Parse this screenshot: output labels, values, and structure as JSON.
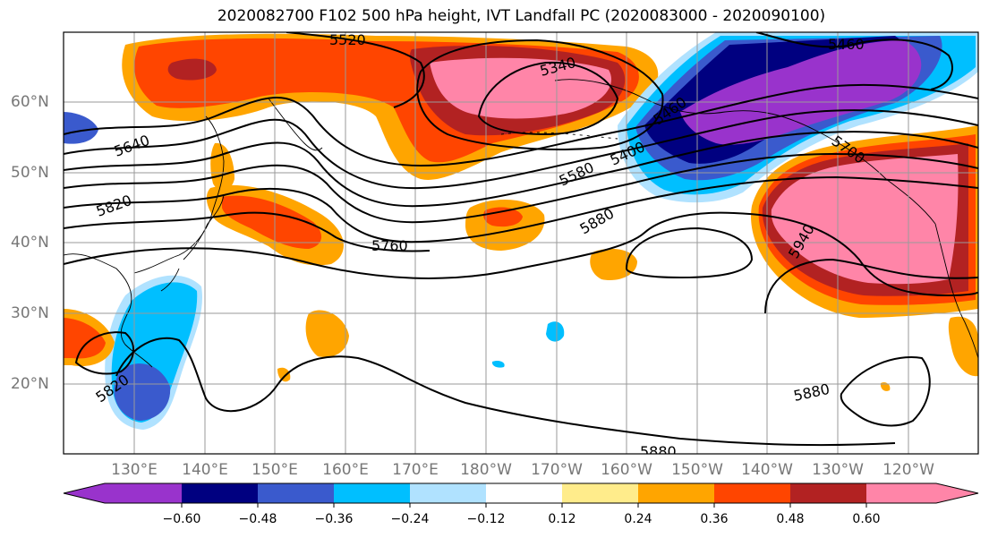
{
  "title": "2020082700 F102 500 hPa height, IVT Landfall PC (2020083000 - 2020090100)",
  "latitude_labels": [
    "60°N",
    "50°N",
    "40°N",
    "30°N",
    "20°N"
  ],
  "longitude_labels": [
    "130°E",
    "140°E",
    "150°E",
    "160°E",
    "170°E",
    "180°W",
    "170°W",
    "160°W",
    "150°W",
    "140°W",
    "130°W",
    "120°W"
  ],
  "contour_labels": [
    "5520",
    "5340",
    "5460",
    "5640",
    "5580",
    "5400",
    "5460",
    "5820",
    "5760",
    "5880",
    "5940",
    "5700",
    "5820",
    "5880",
    "5880"
  ],
  "colorbar": {
    "tick_labels": [
      "−0.60",
      "−0.48",
      "−0.36",
      "−0.24",
      "−0.12",
      "0.12",
      "0.24",
      "0.36",
      "0.48",
      "0.60"
    ],
    "colors": [
      "#9933cc",
      "#000080",
      "#3a5acd",
      "#00bfff",
      "#b0e2ff",
      "#ffffff",
      "#ffec8b",
      "#ffa500",
      "#ff4500",
      "#b22222",
      "#ff85a8",
      "#ff85a8"
    ]
  },
  "palette": {
    "purple": "#9933cc",
    "navy": "#000080",
    "royal": "#3a5acd",
    "sky": "#00bfff",
    "light_sky": "#b0e2ff",
    "yellow": "#ffec8b",
    "orange": "#ffa500",
    "red_orange": "#ff4500",
    "dark_red": "#b22222",
    "pink": "#ff85a8"
  }
}
